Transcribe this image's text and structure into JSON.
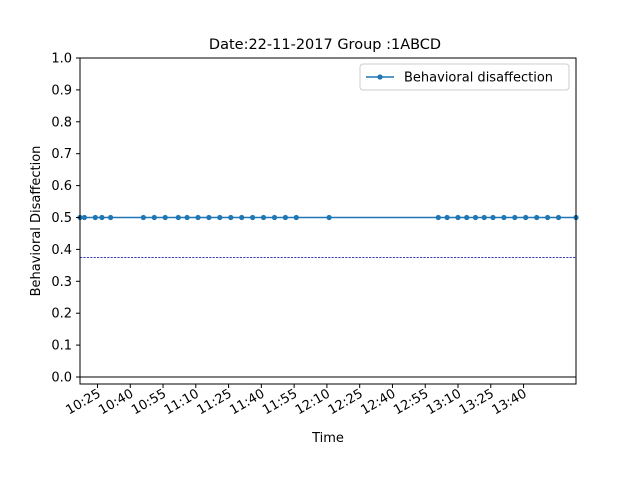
{
  "chart_data": {
    "type": "line",
    "title": "Date:22-11-2017 Group :1ABCD",
    "xlabel": "Time",
    "ylabel": "Behavioral Disaffection",
    "ylim": [
      0,
      1
    ],
    "xlim": [
      "10:17",
      "14:04"
    ],
    "y_ticks": [
      0.0,
      0.1,
      0.2,
      0.3,
      0.4,
      0.5,
      0.6,
      0.7,
      0.8,
      0.9,
      1.0
    ],
    "y_tick_labels": [
      "0.0",
      "0.1",
      "0.2",
      "0.3",
      "0.4",
      "0.5",
      "0.6",
      "0.7",
      "0.8",
      "0.9",
      "1.0"
    ],
    "x_tick_labels": [
      "10:25",
      "10:40",
      "10:55",
      "11:10",
      "11:25",
      "11:40",
      "11:55",
      "12:10",
      "12:25",
      "12:40",
      "12:55",
      "13:10",
      "13:25",
      "13:40"
    ],
    "grid": false,
    "legend_position": "top-right",
    "series": [
      {
        "name": "Behavioral disaffection",
        "color": "#1f77b4",
        "marker": "point",
        "x": [
          "10:17",
          "10:19",
          "10:24",
          "10:27",
          "10:31",
          "10:46",
          "10:51",
          "10:56",
          "11:02",
          "11:06",
          "11:11",
          "11:16",
          "11:21",
          "11:26",
          "11:31",
          "11:36",
          "11:41",
          "11:46",
          "11:51",
          "11:56",
          "12:11",
          "13:01",
          "13:05",
          "13:10",
          "13:14",
          "13:18",
          "13:22",
          "13:26",
          "13:31",
          "13:36",
          "13:41",
          "13:46",
          "13:51",
          "13:56",
          "14:04"
        ],
        "values": [
          0.5,
          0.5,
          0.5,
          0.5,
          0.5,
          0.5,
          0.5,
          0.5,
          0.5,
          0.5,
          0.5,
          0.5,
          0.5,
          0.5,
          0.5,
          0.5,
          0.5,
          0.5,
          0.5,
          0.5,
          0.5,
          0.5,
          0.5,
          0.5,
          0.5,
          0.5,
          0.5,
          0.5,
          0.5,
          0.5,
          0.5,
          0.5,
          0.5,
          0.5,
          0.5
        ]
      }
    ],
    "reference_lines": [
      {
        "kind": "horizontal",
        "y": 0.375,
        "style": "dashed",
        "color": "#00008b"
      },
      {
        "kind": "horizontal",
        "y": 0.0,
        "style": "solid",
        "color": "#000000"
      }
    ]
  }
}
